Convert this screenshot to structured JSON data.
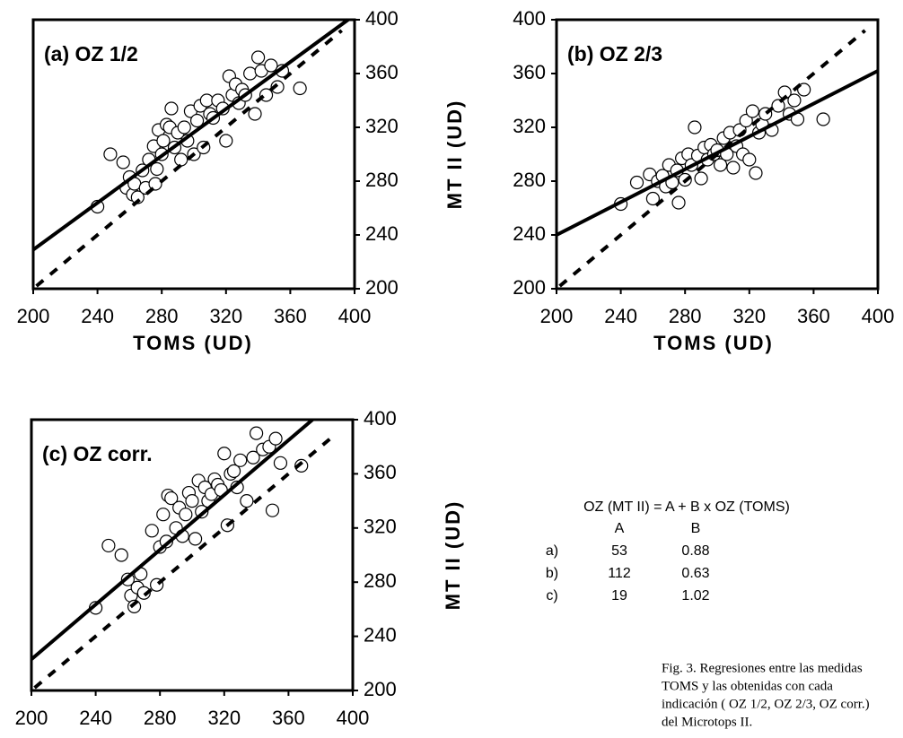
{
  "chart_data": [
    {
      "type": "scatter",
      "title": "(a) OZ 1/2",
      "x_label": "TOMS (UD)",
      "y_label": "MT II (UD)",
      "y_axis_side": "right",
      "xlim": [
        200,
        400
      ],
      "ylim": [
        200,
        400
      ],
      "xticks": [
        200,
        240,
        280,
        320,
        360,
        400
      ],
      "yticks": [
        200,
        240,
        280,
        320,
        360,
        400
      ],
      "series": [
        {
          "type": "scatter",
          "color": "#000000",
          "x": [
            240,
            248,
            256,
            258,
            260,
            262,
            263,
            265,
            268,
            270,
            272,
            275,
            276,
            277,
            278,
            280,
            281,
            283,
            285,
            286,
            288,
            290,
            292,
            294,
            296,
            298,
            300,
            302,
            304,
            306,
            308,
            310,
            312,
            315,
            318,
            320,
            322,
            324,
            326,
            328,
            330,
            332,
            335,
            338,
            340,
            342,
            345,
            348,
            352,
            355,
            366
          ],
          "values": [
            261,
            300,
            294,
            275,
            283,
            270,
            278,
            268,
            288,
            275,
            296,
            306,
            278,
            289,
            318,
            300,
            310,
            322,
            320,
            334,
            305,
            316,
            296,
            320,
            310,
            332,
            300,
            325,
            336,
            305,
            340,
            330,
            327,
            340,
            334,
            310,
            358,
            344,
            352,
            338,
            348,
            344,
            360,
            330,
            372,
            362,
            344,
            366,
            350,
            362,
            349
          ]
        },
        {
          "type": "line",
          "style": "solid",
          "color": "#000000",
          "x": [
            200,
            396
          ],
          "values": [
            229,
            400
          ]
        },
        {
          "type": "line",
          "style": "dashed",
          "color": "#000000",
          "x": [
            202,
            392
          ],
          "values": [
            202,
            392
          ]
        }
      ]
    },
    {
      "type": "scatter",
      "title": "(b) OZ 2/3",
      "x_label": "TOMS (UD)",
      "y_axis_side": "left",
      "xlim": [
        200,
        400
      ],
      "ylim": [
        200,
        400
      ],
      "xticks": [
        200,
        240,
        280,
        320,
        360,
        400
      ],
      "yticks": [
        200,
        240,
        280,
        320,
        360,
        400
      ],
      "series": [
        {
          "type": "scatter",
          "color": "#000000",
          "x": [
            240,
            250,
            258,
            260,
            263,
            266,
            268,
            270,
            272,
            275,
            276,
            278,
            280,
            282,
            284,
            286,
            288,
            290,
            292,
            294,
            296,
            298,
            300,
            302,
            304,
            306,
            308,
            310,
            312,
            314,
            316,
            318,
            320,
            322,
            324,
            326,
            328,
            330,
            334,
            338,
            342,
            345,
            348,
            350,
            354,
            366
          ],
          "values": [
            263,
            279,
            285,
            267,
            280,
            284,
            276,
            292,
            279,
            288,
            264,
            297,
            281,
            300,
            292,
            320,
            299,
            282,
            305,
            296,
            307,
            300,
            303,
            292,
            312,
            300,
            316,
            290,
            306,
            318,
            300,
            325,
            296,
            332,
            286,
            316,
            322,
            330,
            318,
            336,
            346,
            330,
            340,
            326,
            348,
            326
          ]
        },
        {
          "type": "line",
          "style": "solid",
          "color": "#000000",
          "x": [
            200,
            400
          ],
          "values": [
            240,
            362
          ]
        },
        {
          "type": "line",
          "style": "dashed",
          "color": "#000000",
          "x": [
            202,
            392
          ],
          "values": [
            202,
            392
          ]
        }
      ]
    },
    {
      "type": "scatter",
      "title": "(c) OZ corr.",
      "y_label": "MT II (UD)",
      "y_axis_side": "right",
      "xlim": [
        200,
        400
      ],
      "ylim": [
        200,
        400
      ],
      "xticks": [
        200,
        240,
        280,
        320,
        360,
        400
      ],
      "yticks": [
        200,
        240,
        280,
        320,
        360,
        400
      ],
      "series": [
        {
          "type": "scatter",
          "color": "#000000",
          "x": [
            240,
            248,
            256,
            260,
            262,
            264,
            266,
            268,
            270,
            275,
            278,
            280,
            282,
            284,
            285,
            287,
            290,
            292,
            294,
            296,
            298,
            300,
            302,
            304,
            306,
            308,
            310,
            312,
            314,
            316,
            318,
            320,
            322,
            324,
            326,
            328,
            330,
            334,
            338,
            340,
            344,
            348,
            350,
            352,
            355,
            368
          ],
          "values": [
            261,
            307,
            300,
            282,
            270,
            262,
            276,
            286,
            272,
            318,
            278,
            306,
            330,
            310,
            344,
            342,
            320,
            335,
            314,
            330,
            346,
            340,
            312,
            355,
            332,
            350,
            340,
            345,
            356,
            352,
            348,
            375,
            322,
            360,
            362,
            350,
            370,
            340,
            372,
            390,
            378,
            380,
            333,
            386,
            368,
            366
          ]
        },
        {
          "type": "line",
          "style": "solid",
          "color": "#000000",
          "x": [
            200,
            375
          ],
          "values": [
            223,
            400
          ]
        },
        {
          "type": "line",
          "style": "dashed",
          "color": "#000000",
          "x": [
            202,
            388
          ],
          "values": [
            202,
            388
          ]
        }
      ]
    }
  ],
  "table": {
    "title": "OZ (MT II) = A + B x OZ (TOMS)",
    "headers": [
      "A",
      "B"
    ],
    "rows": [
      [
        "a)",
        53,
        0.88
      ],
      [
        "b)",
        112,
        0.63
      ],
      [
        "c)",
        19,
        1.02
      ]
    ]
  },
  "caption": [
    "Fig. 3. Regresiones entre las medidas",
    "TOMS y las obtenidas con cada",
    "indicación ( OZ 1/2, OZ 2/3, OZ corr.)",
    "del Microtops II."
  ]
}
